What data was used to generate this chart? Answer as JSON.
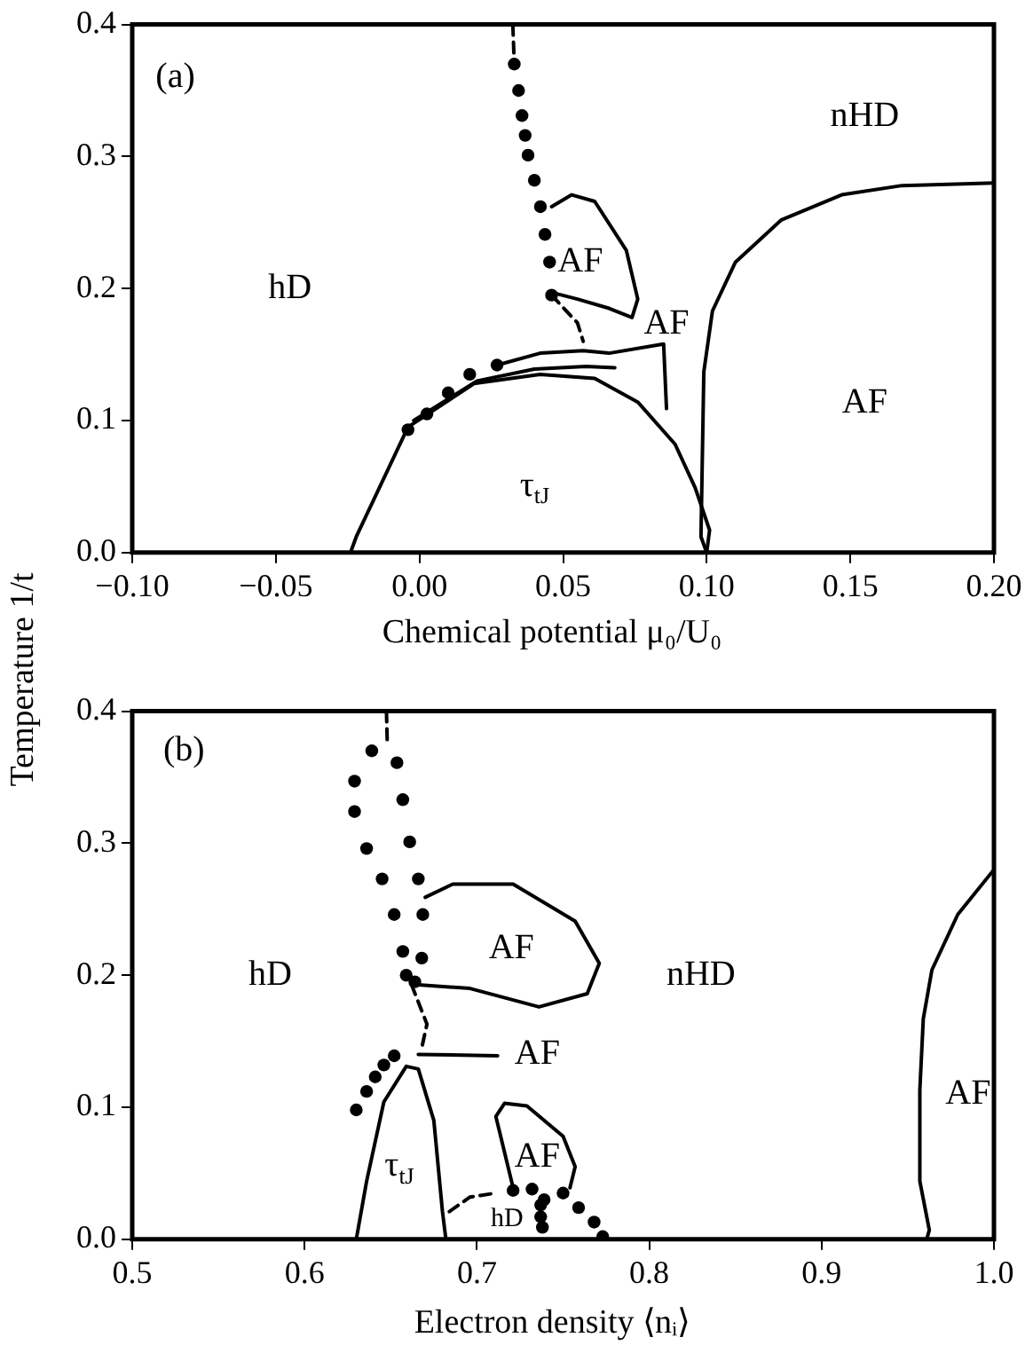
{
  "chart_data": [
    {
      "type": "line",
      "xlabel": "Chemical potential μ₀/U₀",
      "ylabel": "Temperature 1/t",
      "xlim": [
        -0.1,
        0.2
      ],
      "xticks": [
        {
          "value": -0.1,
          "label": "−0.10"
        },
        {
          "value": -0.05,
          "label": "−0.05"
        },
        {
          "value": 0,
          "label": "0.00"
        },
        {
          "value": 0.05,
          "label": "0.05"
        },
        {
          "value": 0.1,
          "label": "0.10"
        },
        {
          "value": 0.15,
          "label": "0.15"
        },
        {
          "value": 0.2,
          "label": "0.20"
        }
      ],
      "ylim": [
        0,
        0.4
      ],
      "yticks": [
        {
          "value": 0,
          "label": "0.0"
        },
        {
          "value": 0.1,
          "label": "0.1"
        },
        {
          "value": 0.2,
          "label": "0.2"
        },
        {
          "value": 0.3,
          "label": "0.3"
        },
        {
          "value": 0.4,
          "label": "0.4"
        }
      ],
      "grid": false,
      "legend": false,
      "marker": "none",
      "line_style": "solid",
      "series": [
        {
          "color": "#000000",
          "x": [
            -0.024,
            -0.022,
            -0.004,
            0.019,
            0.042,
            0.061,
            0.076,
            0.089,
            0.096,
            0.101,
            0.1
          ],
          "values": [
            0,
            0.012,
            0.095,
            0.128,
            0.135,
            0.132,
            0.114,
            0.082,
            0.049,
            0.017,
            0
          ]
        },
        {
          "color": "#000000",
          "x": [
            -0.002,
            0.02,
            0.04,
            0.058,
            0.068
          ],
          "values": [
            0.1,
            0.13,
            0.139,
            0.141,
            0.14
          ]
        },
        {
          "color": "#000000",
          "x": [
            0.027,
            0.042,
            0.057,
            0.066,
            0.085,
            0.086
          ],
          "values": [
            0.142,
            0.151,
            0.153,
            0.151,
            0.158,
            0.109
          ]
        },
        {
          "color": "#000000",
          "x": [
            0.046,
            0.053,
            0.061,
            0.072,
            0.076,
            0.074,
            0.066,
            0.055,
            0.046
          ],
          "values": [
            0.262,
            0.271,
            0.266,
            0.229,
            0.192,
            0.178,
            0.185,
            0.192,
            0.197
          ]
        },
        {
          "color": "#000000",
          "x": [
            0.1,
            0.098,
            0.099,
            0.102,
            0.11,
            0.126,
            0.147,
            0.168,
            0.2
          ],
          "values": [
            0,
            0.012,
            0.137,
            0.183,
            0.22,
            0.252,
            0.271,
            0.278,
            0.28
          ]
        },
        {
          "color": "#000000",
          "line_style": "dashed",
          "x": [
            0.0325,
            0.033
          ],
          "values": [
            0.4,
            0.37
          ]
        },
        {
          "color": "#000000",
          "line_style": "dashed",
          "x": [
            0.046,
            0.055,
            0.057
          ],
          "values": [
            0.195,
            0.174,
            0.16
          ]
        },
        {
          "type": "scatter",
          "marker": "circle",
          "color": "#000000",
          "x": [
            0.033,
            0.0345,
            0.0357,
            0.0368,
            0.0378,
            0.04,
            0.0421,
            0.0437,
            0.0453,
            0.046,
            -0.004,
            0.0026,
            0.01,
            0.0175,
            0.027
          ],
          "values": [
            0.37,
            0.35,
            0.331,
            0.316,
            0.301,
            0.282,
            0.262,
            0.241,
            0.22,
            0.195,
            0.093,
            0.105,
            0.121,
            0.135,
            0.142
          ]
        }
      ],
      "annotations": [
        "(a)",
        "hD",
        "AF",
        "AF",
        "nHD",
        "AF",
        "τ$_{tJ}$"
      ]
    },
    {
      "type": "line",
      "xlabel": "Electron density ⟨nᵢ⟩",
      "xlim": [
        0.5,
        1.0
      ],
      "xticks": [
        {
          "value": 0.5,
          "label": "0.5"
        },
        {
          "value": 0.6,
          "label": "0.6"
        },
        {
          "value": 0.7,
          "label": "0.7"
        },
        {
          "value": 0.8,
          "label": "0.8"
        },
        {
          "value": 0.9,
          "label": "0.9"
        },
        {
          "value": 1.0,
          "label": "1.0"
        }
      ],
      "ylim": [
        0,
        0.4
      ],
      "yticks": [
        {
          "value": 0,
          "label": "0.0"
        },
        {
          "value": 0.1,
          "label": "0.1"
        },
        {
          "value": 0.2,
          "label": "0.2"
        },
        {
          "value": 0.3,
          "label": "0.3"
        },
        {
          "value": 0.4,
          "label": "0.4"
        }
      ],
      "grid": false,
      "legend": false,
      "marker": "none",
      "line_style": "solid",
      "series": [
        {
          "color": "#000000",
          "x": [
            0.63,
            0.636,
            0.646,
            0.659,
            0.666,
            0.675,
            0.68,
            0.682
          ],
          "values": [
            0,
            0.044,
            0.104,
            0.131,
            0.129,
            0.09,
            0.021,
            0
          ]
        },
        {
          "color": "#000000",
          "x": [
            0.666,
            0.712
          ],
          "values": [
            0.14,
            0.139
          ]
        },
        {
          "color": "#000000",
          "x": [
            0.67,
            0.686,
            0.721,
            0.757,
            0.771,
            0.764,
            0.736,
            0.696,
            0.6625
          ],
          "values": [
            0.259,
            0.269,
            0.269,
            0.241,
            0.209,
            0.186,
            0.176,
            0.19,
            0.193
          ]
        },
        {
          "color": "#000000",
          "x": [
            0.721,
            0.711,
            0.716,
            0.729,
            0.75,
            0.757,
            0.754
          ],
          "values": [
            0.039,
            0.093,
            0.103,
            0.101,
            0.078,
            0.055,
            0.039
          ]
        },
        {
          "color": "#000000",
          "x": [
            1.0,
            0.979,
            0.964,
            0.959,
            0.957,
            0.957,
            0.9625,
            0.961
          ],
          "values": [
            0.28,
            0.246,
            0.204,
            0.167,
            0.113,
            0.044,
            0.007,
            0
          ]
        },
        {
          "color": "#000000",
          "line_style": "dashed",
          "x": [
            0.6475,
            0.648
          ],
          "values": [
            0.4,
            0.375
          ]
        },
        {
          "color": "#000000",
          "line_style": "dashed",
          "x": [
            0.662,
            0.671,
            0.668
          ],
          "values": [
            0.193,
            0.163,
            0.145
          ]
        },
        {
          "color": "#000000",
          "line_style": "dashed",
          "x": [
            0.684,
            0.696,
            0.711
          ],
          "values": [
            0.021,
            0.032,
            0.035
          ]
        },
        {
          "type": "scatter",
          "marker": "circle",
          "color": "#000000",
          "x": [
            0.639,
            0.629,
            0.629,
            0.636,
            0.645,
            0.652,
            0.657,
            0.659,
            0.6536,
            0.657,
            0.661,
            0.666,
            0.6686,
            0.668,
            0.664,
            0.63,
            0.636,
            0.641,
            0.646,
            0.652,
            0.721,
            0.732,
            0.739,
            0.75,
            0.759,
            0.768,
            0.773,
            0.737,
            0.737,
            0.738
          ],
          "values": [
            0.37,
            0.347,
            0.324,
            0.296,
            0.273,
            0.246,
            0.218,
            0.2,
            0.361,
            0.333,
            0.301,
            0.273,
            0.246,
            0.213,
            0.195,
            0.098,
            0.112,
            0.123,
            0.132,
            0.139,
            0.037,
            0.038,
            0.03,
            0.035,
            0.024,
            0.013,
            0.002,
            0.026,
            0.017,
            0.009
          ]
        }
      ],
      "annotations": [
        "(b)",
        "hD",
        "AF",
        "nHD",
        "AF",
        "AF",
        "AF",
        "τ$_{tJ}$",
        "hD"
      ]
    }
  ]
}
